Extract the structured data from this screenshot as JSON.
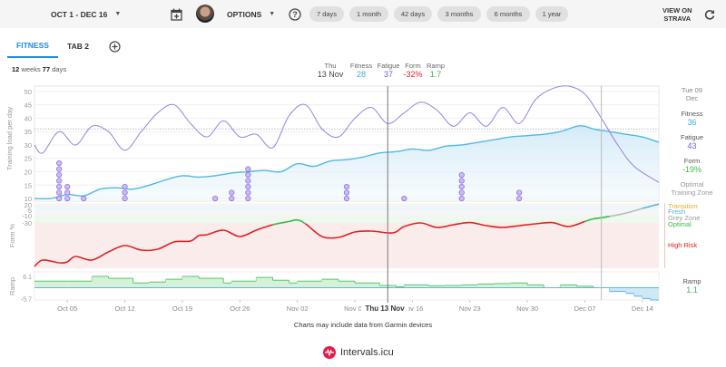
{
  "topbar": {
    "date_range": "OCT 1 - DEC 16",
    "options_label": "OPTIONS",
    "ranges": [
      "7 days",
      "1 month",
      "42 days",
      "3 months",
      "6 months",
      "1 year"
    ],
    "view_on": "VIEW ON",
    "strava": "STRAVA"
  },
  "tabs": [
    {
      "label": "FITNESS",
      "active": true
    },
    {
      "label": "TAB 2",
      "active": false
    }
  ],
  "summary": {
    "weeks": "12",
    "weeks_label": "weeks",
    "days": "77",
    "days_label": "days"
  },
  "hover": {
    "day": "Thu",
    "date": "13 Nov",
    "fitness_label": "Fitness",
    "fitness": "28",
    "fatigue_label": "Fatigue",
    "fatigue": "37",
    "form_label": "Form",
    "form": "-32%",
    "ramp_label": "Ramp",
    "ramp": "1.7",
    "axis_label": "Thu 13 Nov"
  },
  "side": {
    "date_line1": "Tue 09",
    "date_line2": "Dec",
    "fitness_label": "Fitness",
    "fitness": "36",
    "fatigue_label": "Fatigue",
    "fatigue": "43",
    "form_label": "Form",
    "form": "-19%",
    "zone_line1": "Optimal",
    "zone_line2": "Training Zone",
    "ramp_label": "Ramp",
    "ramp": "1.1"
  },
  "zones": {
    "transition": "Transition",
    "fresh": "Fresh",
    "grey": "Grey Zone",
    "optimal": "Optimal",
    "high_risk": "High Risk"
  },
  "colors": {
    "fitness": "#4fb8e6",
    "fatigue": "#9c7ee0",
    "form_red": "#e02020",
    "form_green": "#3cb84a",
    "ramp_green": "#5cc66a",
    "ramp_blue": "#56b3e0",
    "accent": "#1e88e5",
    "transition": "#e8b020",
    "brand": "#e5194a"
  },
  "footer": {
    "note": "Charts may include data from Garmin devices",
    "brand": "Intervals.icu"
  },
  "chart_data": {
    "type": "line",
    "title": "Fitness / Fatigue / Form",
    "x_start": "Oct 1",
    "x_end": "Dec 16",
    "x_ticks": [
      "Oct 05",
      "Oct 12",
      "Oct 19",
      "Oct 26",
      "Nov 02",
      "Nov 09",
      "Nov 16",
      "Nov 23",
      "Nov 30",
      "Dec 07",
      "Dec 14"
    ],
    "x_tick_days": [
      4,
      11,
      18,
      25,
      32,
      39,
      46,
      53,
      60,
      67,
      74
    ],
    "load_panel": {
      "ylabel": "Training load per day",
      "ylim": [
        9,
        52
      ],
      "yticks": [
        10,
        15,
        20,
        25,
        30,
        35,
        40,
        45,
        50
      ],
      "reference_line": 36,
      "series": [
        {
          "name": "Fitness",
          "x": [
            0,
            2,
            4,
            6,
            8,
            10,
            12,
            14,
            16,
            18,
            20,
            22,
            24,
            26,
            28,
            30,
            32,
            34,
            36,
            38,
            40,
            42,
            44,
            46,
            48,
            50,
            52,
            54,
            56,
            58,
            60,
            62,
            64,
            66,
            67,
            68,
            70,
            72,
            74,
            76
          ],
          "values": [
            10,
            10,
            11.5,
            11,
            13.5,
            14,
            13.5,
            15,
            17,
            18.5,
            18,
            18.5,
            19.5,
            20,
            20.5,
            20,
            23,
            22,
            24,
            24.5,
            25.5,
            27,
            27.5,
            28.5,
            28,
            29.5,
            30,
            31,
            32,
            33,
            33.5,
            34,
            35,
            37,
            37,
            36,
            35,
            34,
            33,
            31
          ]
        },
        {
          "name": "Fatigue",
          "x": [
            0,
            1,
            3,
            5,
            7,
            9,
            11,
            13,
            15,
            17,
            19,
            21,
            23,
            25,
            27,
            29,
            31,
            33,
            35,
            37,
            39,
            41,
            43,
            45,
            47,
            49,
            51,
            53,
            55,
            57,
            59,
            61,
            63,
            65,
            67,
            69,
            71,
            73,
            76
          ],
          "values": [
            30,
            27,
            35,
            30,
            37,
            35,
            28,
            35,
            42,
            45,
            38,
            33,
            39,
            33,
            34,
            29,
            41,
            45,
            36,
            33,
            40,
            44,
            38,
            42,
            46,
            43,
            37,
            42,
            37,
            44,
            38,
            47,
            51,
            52,
            49,
            40,
            30,
            22,
            16
          ]
        }
      ],
      "activity_markers": [
        {
          "day": 3,
          "count": 7
        },
        {
          "day": 4,
          "count": 3
        },
        {
          "day": 6,
          "count": 1
        },
        {
          "day": 11,
          "count": 3
        },
        {
          "day": 22,
          "count": 1
        },
        {
          "day": 24,
          "count": 2
        },
        {
          "day": 26,
          "count": 6
        },
        {
          "day": 38,
          "count": 3
        },
        {
          "day": 45,
          "count": 1
        },
        {
          "day": 52,
          "count": 5
        },
        {
          "day": 59,
          "count": 2
        }
      ]
    },
    "form_panel": {
      "ylabel": "Form %",
      "yticks": [
        20,
        5,
        -10,
        -30
      ],
      "zones": [
        {
          "name": "Transition",
          "from": 20,
          "to": 25
        },
        {
          "name": "Fresh",
          "from": 5,
          "to": 20
        },
        {
          "name": "Grey Zone",
          "from": -10,
          "to": 5
        },
        {
          "name": "Optimal",
          "from": -30,
          "to": -10
        },
        {
          "name": "High Risk",
          "from": -80,
          "to": -30
        }
      ],
      "x": [
        0,
        1,
        3,
        4,
        5,
        7,
        9,
        11,
        13,
        15,
        17,
        19,
        20,
        21,
        23,
        25,
        27,
        29,
        31,
        32,
        33,
        35,
        37,
        39,
        41,
        43,
        44,
        45,
        47,
        49,
        51,
        53,
        55,
        57,
        59,
        61,
        63,
        65,
        67,
        68,
        70,
        72,
        74,
        76
      ],
      "values": [
        -78,
        -71,
        -74,
        -73,
        -67,
        -71,
        -62,
        -55,
        -60,
        -59,
        -51,
        -50,
        -44,
        -43,
        -38,
        -45,
        -38,
        -32,
        -26,
        -22,
        -31,
        -45,
        -46,
        -40,
        -39,
        -41,
        -40,
        -34,
        -30,
        -35,
        -32,
        -29,
        -33,
        -35,
        -33,
        -31,
        -29,
        -34,
        -26,
        -19,
        -12,
        -3,
        10,
        22
      ]
    },
    "ramp_panel": {
      "ylabel": "Ramp",
      "yticks": [
        6.1,
        -5.7
      ],
      "x": [
        0,
        4,
        7,
        9,
        12,
        14,
        16,
        18,
        20,
        23,
        24,
        27,
        29,
        31,
        32,
        35,
        37,
        39,
        42,
        44,
        45,
        48,
        50,
        52,
        54,
        56,
        58,
        60,
        62,
        64,
        66,
        68,
        70,
        72,
        73,
        74,
        75,
        76
      ],
      "values": [
        3.5,
        3.5,
        6,
        5,
        2.5,
        3,
        4.5,
        6,
        5,
        2.5,
        3.5,
        5.5,
        4,
        2.5,
        3.5,
        4.5,
        3.5,
        2.5,
        1.2,
        0.5,
        1.5,
        1,
        1.2,
        1.5,
        2,
        2.2,
        2.5,
        1.5,
        0,
        1.5,
        0.8,
        0,
        -2,
        -3,
        -4.5,
        -5.7,
        -6.5,
        -6.5
      ]
    },
    "grid": true
  }
}
